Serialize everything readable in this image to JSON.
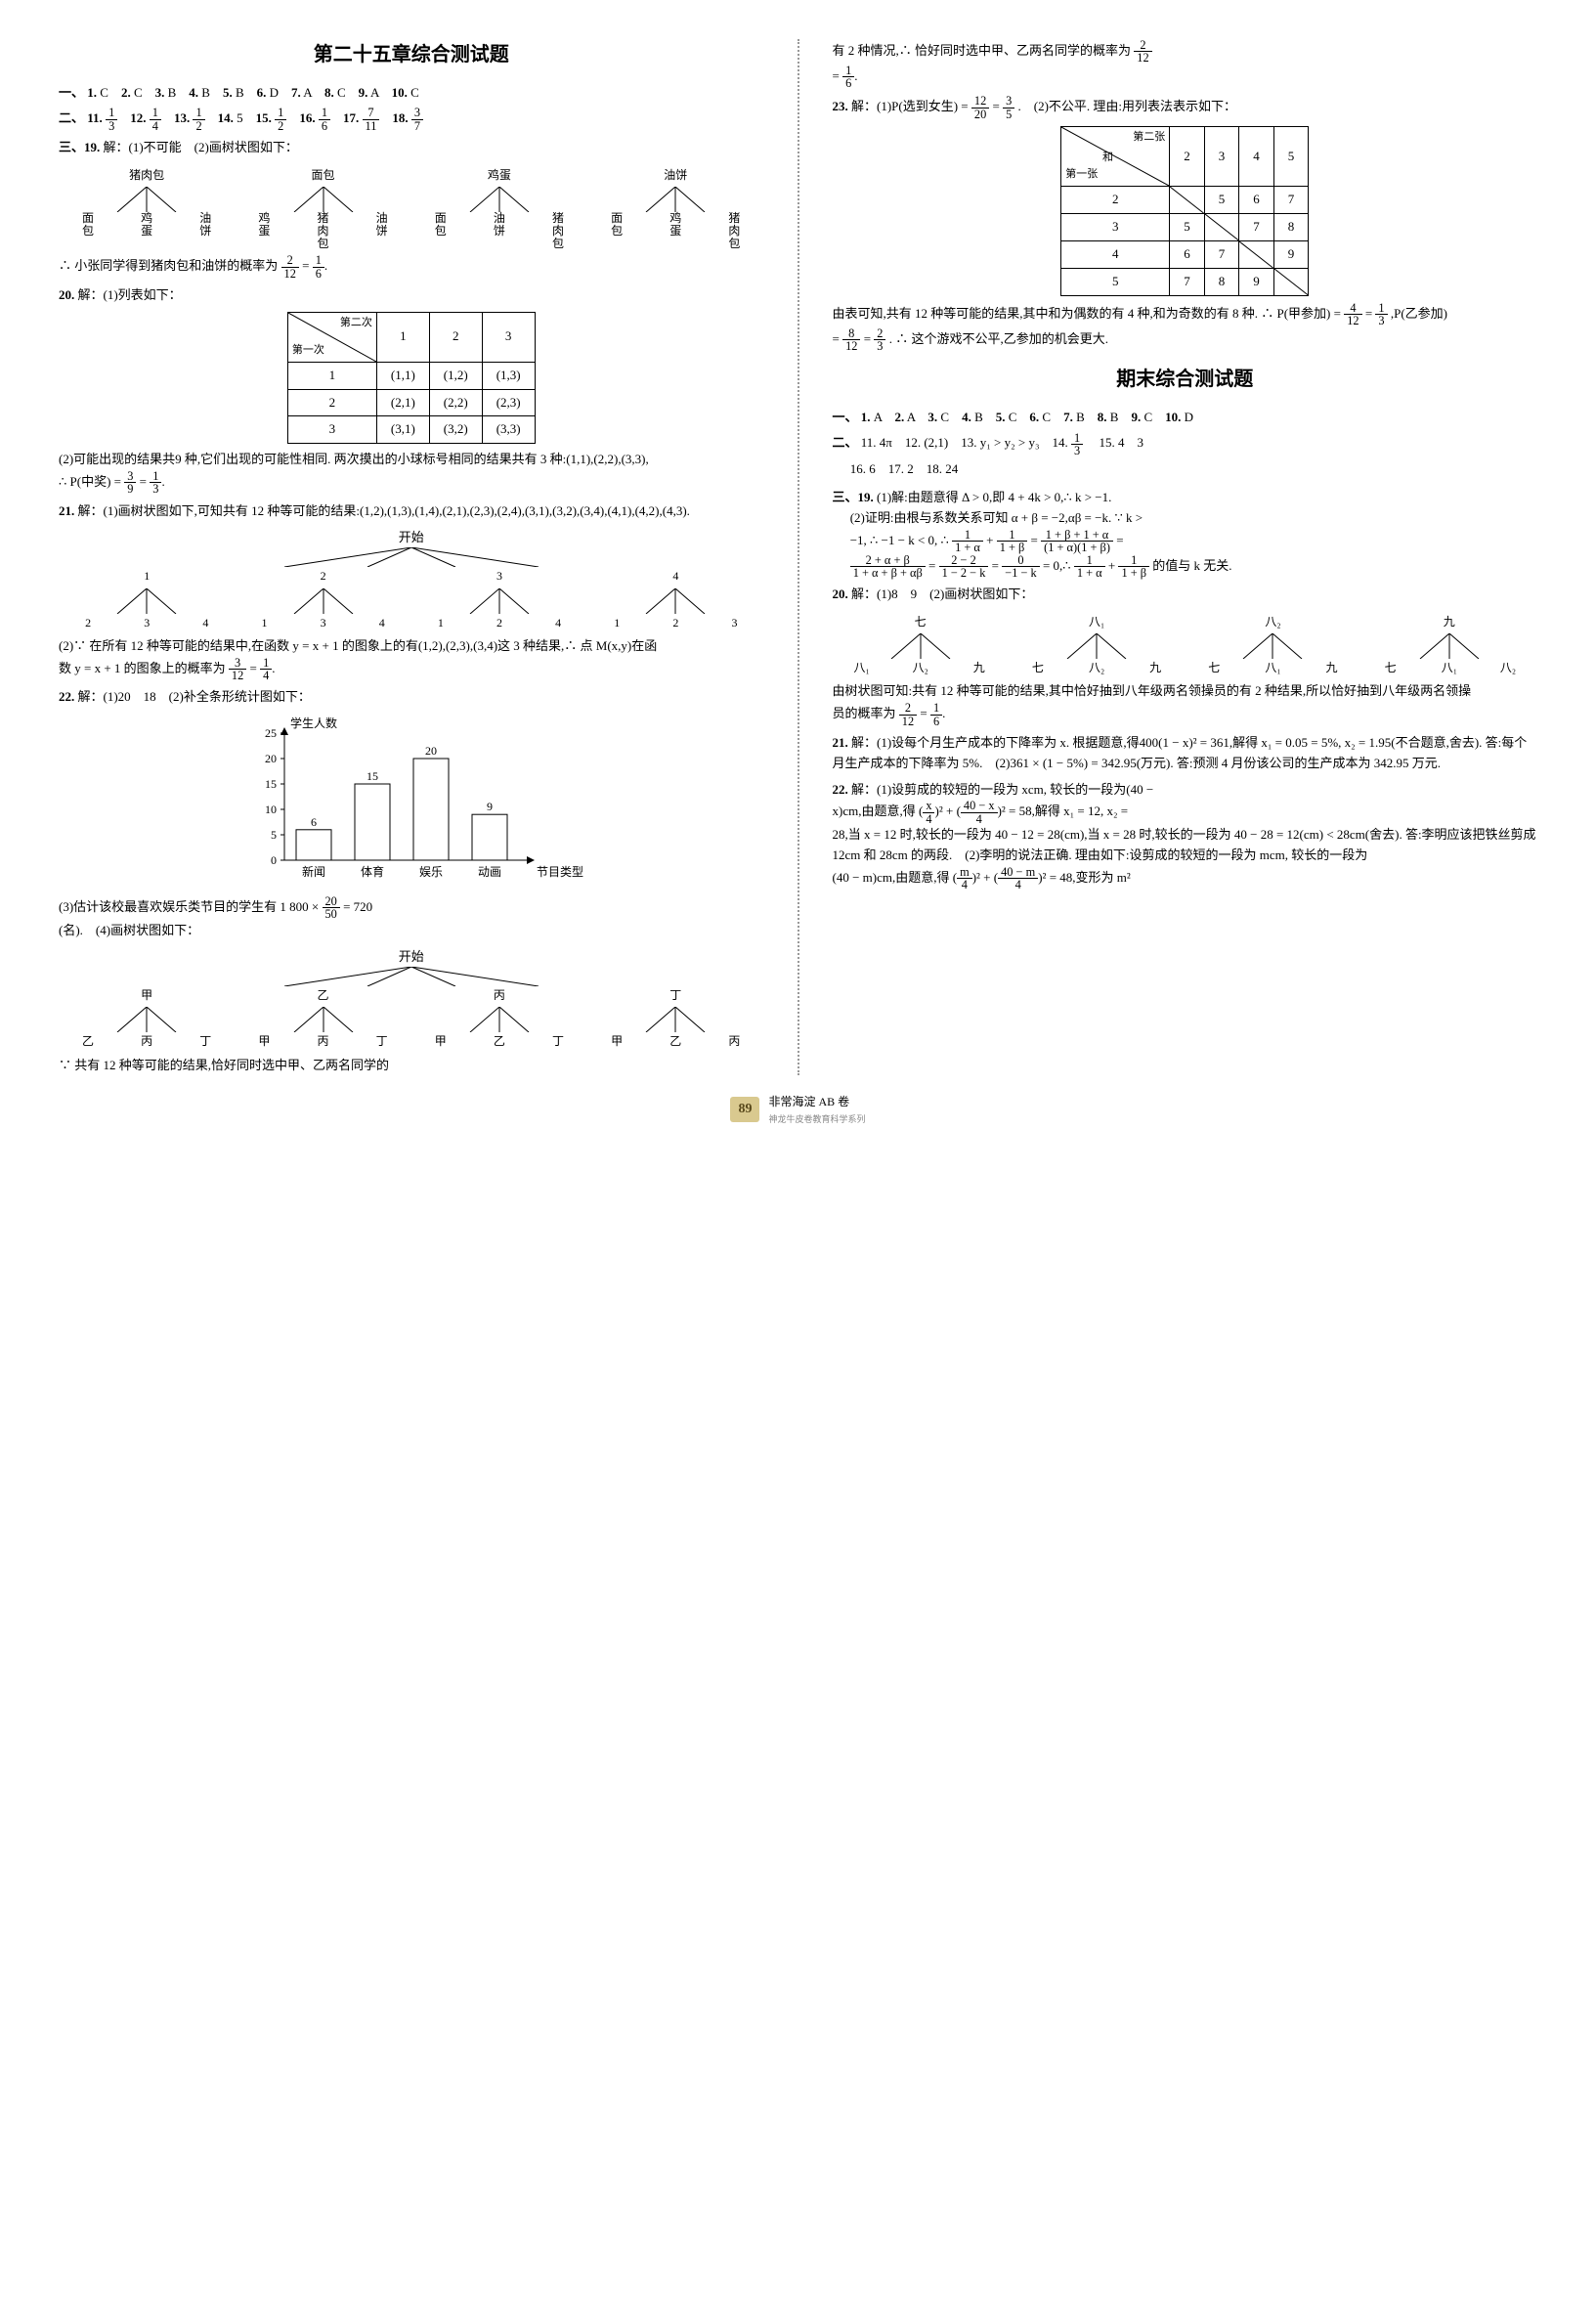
{
  "left": {
    "title": "第二十五章综合测试题",
    "sec1": {
      "prefix": "一、",
      "items": [
        [
          "1",
          "C"
        ],
        [
          "2",
          "C"
        ],
        [
          "3",
          "B"
        ],
        [
          "4",
          "B"
        ],
        [
          "5",
          "B"
        ],
        [
          "6",
          "D"
        ],
        [
          "7",
          "A"
        ],
        [
          "8",
          "C"
        ],
        [
          "9",
          "A"
        ],
        [
          "10",
          "C"
        ]
      ]
    },
    "sec2": {
      "prefix": "二、",
      "items": [
        {
          "n": "11",
          "frac": [
            1,
            3
          ]
        },
        {
          "n": "12",
          "frac": [
            1,
            4
          ]
        },
        {
          "n": "13",
          "frac": [
            1,
            2
          ]
        },
        {
          "n": "14",
          "text": "5"
        },
        {
          "n": "15",
          "frac": [
            1,
            2
          ]
        },
        {
          "n": "16",
          "frac": [
            1,
            6
          ]
        },
        {
          "n": "17",
          "frac": [
            7,
            11
          ]
        },
        {
          "n": "18",
          "frac": [
            3,
            7
          ]
        }
      ]
    },
    "sec3_prefix": "三、",
    "q19": {
      "n": "19.",
      "lead": "解：(1)不可能　(2)画树状图如下：",
      "roots": [
        "猪肉包",
        "面包",
        "鸡蛋",
        "油饼"
      ],
      "branches": [
        [
          "面包",
          "鸡蛋",
          "油饼"
        ],
        [
          "鸡蛋",
          "猪肉包",
          "油饼"
        ],
        [
          "面包",
          "油饼",
          "猪肉包"
        ],
        [
          "面包",
          "鸡蛋",
          "猪肉包"
        ]
      ],
      "conclusion": "∴ 小张同学得到猪肉包和油饼的概率为",
      "frac1": [
        2,
        12
      ],
      "eq": "=",
      "frac2": [
        1,
        6
      ],
      "period": "."
    },
    "q20": {
      "n": "20.",
      "lead": "解：(1)列表如下：",
      "table": {
        "row_header": "第一次",
        "col_header": "第二次",
        "cols": [
          "1",
          "2",
          "3"
        ],
        "rows": [
          [
            "1",
            "(1,1)",
            "(1,2)",
            "(1,3)"
          ],
          [
            "2",
            "(2,1)",
            "(2,2)",
            "(2,3)"
          ],
          [
            "3",
            "(3,1)",
            "(3,2)",
            "(3,3)"
          ]
        ]
      },
      "text2": "(2)可能出现的结果共9 种,它们出现的可能性相同. 两次摸出的小球标号相同的结果共有 3 种:(1,1),(2,2),(3,3),",
      "conc_prefix": "∴ P(中奖) = ",
      "frac1": [
        3,
        9
      ],
      "eq": " = ",
      "frac2": [
        1,
        3
      ],
      "period": "."
    },
    "q21": {
      "n": "21.",
      "lead": "解：(1)画树状图如下,可知共有 12 种等可能的结果:(1,2),(1,3),(1,4),(2,1),(2,3),(2,4),(3,1),(3,2),(3,4),(4,1),(4,2),(4,3).",
      "tree_top": "开始",
      "level1": [
        "1",
        "2",
        "3",
        "4"
      ],
      "level2": [
        [
          "2",
          "3",
          "4"
        ],
        [
          "1",
          "3",
          "4"
        ],
        [
          "1",
          "2",
          "4"
        ],
        [
          "1",
          "2",
          "3"
        ]
      ],
      "part2a": "(2)∵ 在所有 12 种等可能的结果中,在函数 y = x + 1 的图象上的有(1,2),(2,3),(3,4)这 3 种结果,∴ 点 M(x,y)在函",
      "part2b_prefix": "数 y = x + 1 的图象上的概率为",
      "frac1": [
        3,
        12
      ],
      "eq": " = ",
      "frac2": [
        1,
        4
      ],
      "period": "."
    },
    "q22": {
      "n": "22.",
      "lead": "解：(1)20　18　(2)补全条形统计图如下：",
      "chart": {
        "ylabel": "学生人数",
        "xlabel": "节目类型",
        "ymax": 25,
        "ystep": 5,
        "cats": [
          "新闻",
          "体育",
          "娱乐",
          "动画"
        ],
        "vals": [
          6,
          15,
          20,
          9
        ],
        "bar_color": "#ffffff",
        "border": "#000"
      },
      "part3_prefix": "(3)估计该校最喜欢娱乐类节目的学生有 1 800 × ",
      "frac3": [
        20,
        50
      ],
      "part3_suffix": " = 720",
      "part3_line2": "(名).　(4)画树状图如下：",
      "tree_top": "开始",
      "level1": [
        "甲",
        "乙",
        "丙",
        "丁"
      ],
      "level2": [
        [
          "乙",
          "丙",
          "丁"
        ],
        [
          "甲",
          "丙",
          "丁"
        ],
        [
          "甲",
          "乙",
          "丁"
        ],
        [
          "甲",
          "乙",
          "丙"
        ]
      ],
      "tail": "∵ 共有 12 种等可能的结果,恰好同时选中甲、乙两名同学的"
    }
  },
  "right": {
    "cont1_prefix": "有 2 种情况,∴ 恰好同时选中甲、乙两名同学的概率为",
    "cont1_frac1": [
      2,
      12
    ],
    "cont1_eq": "",
    "cont1_line2": "= ",
    "cont1_frac2": [
      1,
      6
    ],
    "cont1_period": ".",
    "q23": {
      "n": "23.",
      "lead": "解：(1)P(选到女生) = ",
      "frac1": [
        12,
        20
      ],
      "eq1": " = ",
      "frac2": [
        3,
        5
      ],
      "p1": ".　(2)不公平. 理由:用列表法表示如下：",
      "table": {
        "row_header": "第一张",
        "col_header": "第二张",
        "mid": "和",
        "cols": [
          "2",
          "3",
          "4",
          "5"
        ],
        "rows": [
          [
            "2",
            "",
            "5",
            "6",
            "7"
          ],
          [
            "3",
            "5",
            "",
            "7",
            "8"
          ],
          [
            "4",
            "6",
            "7",
            "",
            "9"
          ],
          [
            "5",
            "7",
            "8",
            "9",
            ""
          ]
        ]
      },
      "text2": "由表可知,共有 12 种等可能的结果,其中和为偶数的有 4 种,和为奇数的有 8 种. ∴ P(甲参加) = ",
      "frac3": [
        4,
        12
      ],
      "eq3": " = ",
      "frac4": [
        1,
        3
      ],
      "text3": ",P(乙参加)",
      "text4_prefix": "= ",
      "frac5": [
        8,
        12
      ],
      "eq5": " = ",
      "frac6": [
        2,
        3
      ],
      "text4_suffix": ". ∴ 这个游戏不公平,乙参加的机会更大."
    },
    "title2": "期末综合测试题",
    "sec1b": {
      "prefix": "一、",
      "items": [
        [
          "1",
          "A"
        ],
        [
          "2",
          "A"
        ],
        [
          "3",
          "C"
        ],
        [
          "4",
          "B"
        ],
        [
          "5",
          "C"
        ],
        [
          "6",
          "C"
        ],
        [
          "7",
          "B"
        ],
        [
          "8",
          "B"
        ],
        [
          "9",
          "C"
        ],
        [
          "10",
          "D"
        ]
      ]
    },
    "sec2b": {
      "prefix": "二、",
      "line1": "11. 4π　12. (2,1)　13. y₁ > y₂ > y₃　14. ",
      "frac14": [
        1,
        3
      ],
      "line1b": "　15. 4　3",
      "line2": "16. 6　17. 2　18. 24"
    },
    "sec3b_prefix": "三、",
    "q19b": {
      "n": "19.",
      "p1": "(1)解:由题意得 Δ > 0,即 4 + 4k > 0,∴ k > −1.",
      "p2": "(2)证明:由根与系数关系可知 α + β = −2,αβ = −k. ∵ k >",
      "p3_a": "−1, ∴ −1 − k < 0, ∴ ",
      "fA": [
        1,
        "1 + α"
      ],
      "plus": " + ",
      "fB": [
        1,
        "1 + β"
      ],
      "eq": " = ",
      "fC": [
        "1 + β + 1 + α",
        "(1 + α)(1 + β)"
      ],
      "eq2": " = ",
      "p4_a": "",
      "fD": [
        "2 + α + β",
        "1 + α + β + αβ"
      ],
      "eq3": " = ",
      "fE": [
        "2 − 2",
        "1 − 2 − k"
      ],
      "eq4": " = ",
      "fF": [
        "0",
        "−1 − k"
      ],
      "eq5": " = 0,∴ ",
      "fG": [
        1,
        "1 + α"
      ],
      "plus2": " + ",
      "fH": [
        1,
        "1 + β"
      ],
      "p4_tail": "的值与 k 无关."
    },
    "q20b": {
      "n": "20.",
      "lead": "解：(1)8　9　(2)画树状图如下：",
      "roots": [
        "七",
        "八₁",
        "八₂",
        "九"
      ],
      "branches": [
        [
          "八₁",
          "八₂",
          "九"
        ],
        [
          "七",
          "八₂",
          "九"
        ],
        [
          "七",
          "八₁",
          "九"
        ],
        [
          "七",
          "八₁",
          "八₂"
        ]
      ],
      "text2": "由树状图可知:共有 12 种等可能的结果,其中恰好抽到八年级两名领操员的有 2 种结果,所以恰好抽到八年级两名领操",
      "conc_prefix": "员的概率为",
      "frac1": [
        2,
        12
      ],
      "eq": " = ",
      "frac2": [
        1,
        6
      ],
      "period": "."
    },
    "q21b": {
      "n": "21.",
      "text": "解：(1)设每个月生产成本的下降率为 x. 根据题意,得400(1 − x)² = 361,解得 x₁ = 0.05 = 5%, x₂ = 1.95(不合题意,舍去). 答:每个月生产成本的下降率为 5%.　(2)361 × (1 − 5%) = 342.95(万元). 答:预测 4 月份该公司的生产成本为 342.95 万元."
    },
    "q22b": {
      "n": "22.",
      "p1": "解：(1)设剪成的较短的一段为 xcm, 较长的一段为(40 −",
      "p2a": "x)cm,由题意,得",
      "fA2": [
        "x",
        "4"
      ],
      "sq1": "² + ",
      "fB2": [
        "40 − x",
        "4"
      ],
      "sq2": "² = 58,解得 x₁ = 12, x₂ =",
      "p3": "28,当 x = 12 时,较长的一段为 40 − 12 = 28(cm),当 x = 28 时,较长的一段为 40 − 28 = 12(cm) < 28cm(舍去). 答:李明应该把铁丝剪成 12cm 和 28cm 的两段.　(2)李明的说法正确. 理由如下:设剪成的较短的一段为 mcm, 较长的一段为",
      "p4a": "(40 − m)cm,由题意,得",
      "fC2": [
        "m",
        "4"
      ],
      "sq3": "² + ",
      "fD2": [
        "40 − m",
        "4"
      ],
      "sq4": "² = 48,变形为 m²"
    }
  },
  "footer": {
    "page": "89",
    "line1": "非常海淀 AB 卷",
    "line2": "神龙牛皮卷教育科学系列"
  }
}
